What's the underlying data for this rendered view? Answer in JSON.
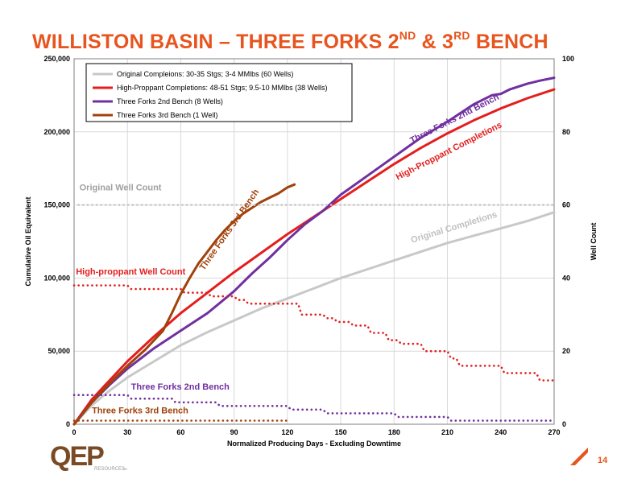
{
  "slide": {
    "title_main": "WILLISTON BASIN – THREE FORKS 2",
    "title_sup1": "ND",
    "title_mid": " & 3",
    "title_sup2": "RD",
    "title_end": " BENCH",
    "page_number": "14",
    "logo_text": "QEP",
    "logo_sub": "RESOURCES",
    "logo_tm": "TM",
    "colors": {
      "title": "#e8541e",
      "logo_brown": "#7a4a24",
      "logo_orange": "#e8761e",
      "logo_gray": "#9a9a9a"
    }
  },
  "chart_data": {
    "type": "line",
    "xlabel": "Normalized Producing Days - Excluding Downtime",
    "ylabel": "Cumulative Oil Equivalent",
    "y2label": "Well Count",
    "xlim": [
      0,
      270
    ],
    "ylim": [
      0,
      250000
    ],
    "y2lim": [
      0,
      100
    ],
    "x_ticks": [
      0,
      30,
      60,
      90,
      120,
      150,
      180,
      210,
      240,
      270
    ],
    "x_tick_labels": [
      "0",
      "30",
      "60",
      "90",
      "120",
      "150",
      "180",
      "210",
      "240",
      "270"
    ],
    "y_ticks": [
      0,
      50000,
      100000,
      150000,
      200000,
      250000
    ],
    "y_tick_labels": [
      "0",
      "50,000",
      "100,000",
      "150,000",
      "200,000",
      "250,000"
    ],
    "y2_ticks": [
      0,
      20,
      40,
      60,
      80,
      100
    ],
    "y2_tick_labels": [
      "0",
      "20",
      "40",
      "60",
      "80",
      "100"
    ],
    "grid": true,
    "legend_position": "top-left",
    "legend": [
      {
        "label": "Original Compleions: 30-35 Stgs; 3-4 MMlbs (60 Wells)",
        "color": "#c8c8c8"
      },
      {
        "label": "High-Proppant Completions: 48-51 Stgs; 9.5-10 MMlbs (38 Wells)",
        "color": "#e41e1e"
      },
      {
        "label": "Three Forks 2nd Bench (8 Wells)",
        "color": "#7030a0"
      },
      {
        "label": "Three Forks 3rd Bench (1 Well)",
        "color": "#a0420a"
      }
    ],
    "series": [
      {
        "name": "Original Completions",
        "axis": "left",
        "style": "solid",
        "color": "#c8c8c8",
        "x": [
          0,
          10,
          20,
          30,
          45,
          60,
          75,
          90,
          105,
          120,
          135,
          150,
          165,
          180,
          195,
          210,
          225,
          240,
          255,
          270
        ],
        "y": [
          0,
          13000,
          23000,
          32000,
          43000,
          54000,
          63000,
          71000,
          79000,
          86000,
          93000,
          100000,
          106000,
          112000,
          118000,
          124000,
          129000,
          134000,
          139000,
          145000
        ]
      },
      {
        "name": "High-Proppant Completions",
        "axis": "left",
        "style": "solid",
        "color": "#e41e1e",
        "x": [
          0,
          10,
          20,
          30,
          45,
          60,
          75,
          90,
          105,
          120,
          135,
          150,
          165,
          180,
          195,
          210,
          225,
          240,
          255,
          270
        ],
        "y": [
          0,
          17000,
          30000,
          43000,
          60000,
          76000,
          90000,
          104000,
          117000,
          130000,
          142000,
          154000,
          166000,
          178000,
          189000,
          199000,
          208000,
          216000,
          223000,
          229000
        ]
      },
      {
        "name": "Three Forks 2nd Bench",
        "axis": "left",
        "style": "solid",
        "color": "#7030a0",
        "x": [
          0,
          10,
          20,
          30,
          45,
          60,
          75,
          90,
          100,
          110,
          120,
          130,
          140,
          150,
          165,
          180,
          195,
          210,
          225,
          235,
          240,
          245,
          255,
          262,
          270
        ],
        "y": [
          0,
          15000,
          27000,
          38000,
          52000,
          64000,
          76000,
          91000,
          103000,
          114000,
          126000,
          137000,
          146000,
          157000,
          170000,
          183000,
          196000,
          207000,
          219000,
          225000,
          226000,
          229000,
          233000,
          235000,
          237000
        ]
      },
      {
        "name": "Three Forks 3rd Bench",
        "axis": "left",
        "style": "solid",
        "color": "#a0420a",
        "x": [
          0,
          10,
          20,
          30,
          40,
          50,
          55,
          60,
          65,
          70,
          75,
          80,
          85,
          90,
          95,
          100,
          105,
          110,
          115,
          120,
          124
        ],
        "y": [
          0,
          15000,
          28000,
          40000,
          51000,
          64000,
          76000,
          89000,
          100000,
          110000,
          118000,
          126000,
          133000,
          139000,
          144000,
          148000,
          152000,
          155000,
          158000,
          162000,
          164000
        ]
      },
      {
        "name": "Original Well Count",
        "axis": "right",
        "style": "dotted",
        "color": "#c8c8c8",
        "x": [
          0,
          270
        ],
        "y": [
          60,
          60
        ]
      },
      {
        "name": "High-proppant Well Count",
        "axis": "right",
        "style": "dotted",
        "color": "#e41e1e",
        "x": [
          0,
          30,
          32,
          60,
          62,
          75,
          77,
          90,
          92,
          96,
          98,
          104,
          106,
          126,
          128,
          140,
          142,
          146,
          148,
          155,
          157,
          165,
          167,
          175,
          177,
          182,
          184,
          195,
          197,
          210,
          212,
          215,
          217,
          240,
          242,
          260,
          262,
          268,
          270
        ],
        "y": [
          38,
          38,
          37,
          37,
          36,
          36,
          35,
          35,
          34,
          34,
          33,
          33,
          33,
          33,
          30,
          30,
          29,
          29,
          28,
          28,
          27,
          27,
          25,
          25,
          23,
          23,
          22,
          22,
          20,
          20,
          18,
          18,
          16,
          16,
          14,
          14,
          12,
          12,
          12
        ]
      },
      {
        "name": "Three Forks 2nd Bench",
        "axis": "right",
        "style": "dotted",
        "color": "#7030a0",
        "x": [
          0,
          30,
          32,
          55,
          57,
          68,
          70,
          80,
          82,
          120,
          122,
          140,
          142,
          180,
          182,
          210,
          212,
          270
        ],
        "y": [
          8,
          8,
          7,
          7,
          6,
          6,
          6,
          6,
          5,
          5,
          4,
          4,
          3,
          3,
          2,
          2,
          1,
          1
        ]
      },
      {
        "name": "Three Forks 3rd Bench",
        "axis": "right",
        "style": "dotted",
        "color": "#a0420a",
        "x": [
          0,
          120
        ],
        "y": [
          1,
          1
        ]
      }
    ],
    "annotations": [
      {
        "text": "Original Well Count",
        "color": "#a0a0a0",
        "x": 3,
        "y": 64,
        "axis": "right",
        "rotate": 0
      },
      {
        "text": "High-proppant Well Count",
        "color": "#e41e1e",
        "x": 1,
        "y": 41,
        "axis": "right",
        "rotate": 0
      },
      {
        "text": "Three Forks 2nd Bench",
        "color": "#7030a0",
        "x": 32,
        "y": 9.5,
        "axis": "right",
        "rotate": 0
      },
      {
        "text": "Three Forks 3rd Bench",
        "color": "#a0420a",
        "x": 10,
        "y": 3,
        "axis": "right",
        "rotate": 0
      },
      {
        "text": "Original Completions",
        "color": "#c0c0c0",
        "x": 190,
        "y": 124000,
        "axis": "left",
        "rotate": -17
      },
      {
        "text": "High-Proppant Completions",
        "color": "#e41e1e",
        "x": 182,
        "y": 167000,
        "axis": "left",
        "rotate": -27
      },
      {
        "text": "Three Forks 2nd Bench",
        "color": "#7030a0",
        "x": 190,
        "y": 192000,
        "axis": "left",
        "rotate": -27
      },
      {
        "text": "Three Forks 3rd Bench",
        "color": "#a0420a",
        "x": 73,
        "y": 105000,
        "axis": "left",
        "rotate": -55
      }
    ]
  }
}
